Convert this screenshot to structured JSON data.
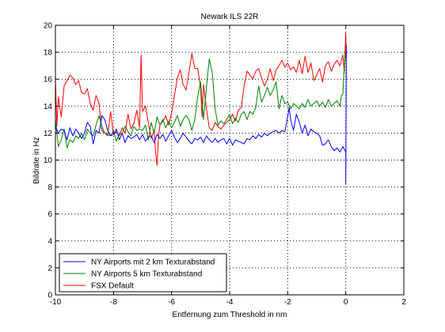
{
  "chart_data": {
    "type": "line",
    "title": "Newark ILS 22R",
    "xlabel": "Entfernung zum Threshold in nm",
    "ylabel": "Bildrate in Hz",
    "xlim": [
      -10,
      2
    ],
    "ylim": [
      0,
      20
    ],
    "xticks": [
      -10,
      -8,
      -6,
      -4,
      -2,
      0,
      2
    ],
    "yticks": [
      0,
      2,
      4,
      6,
      8,
      10,
      12,
      14,
      16,
      18,
      20
    ],
    "grid": "dotted",
    "legend_position": "bottom-left",
    "series": [
      {
        "name": "NY Airports mit 2 km Texturabstand",
        "color": "#0000ff",
        "x": [
          -10,
          -9.9,
          -9.8,
          -9.7,
          -9.6,
          -9.5,
          -9.4,
          -9.3,
          -9.2,
          -9.1,
          -9.0,
          -8.9,
          -8.8,
          -8.7,
          -8.6,
          -8.5,
          -8.4,
          -8.3,
          -8.2,
          -8.1,
          -8.0,
          -7.9,
          -7.8,
          -7.7,
          -7.6,
          -7.5,
          -7.4,
          -7.3,
          -7.2,
          -7.1,
          -7.0,
          -6.9,
          -6.8,
          -6.7,
          -6.6,
          -6.5,
          -6.4,
          -6.3,
          -6.2,
          -6.1,
          -6.0,
          -5.9,
          -5.8,
          -5.7,
          -5.6,
          -5.5,
          -5.4,
          -5.3,
          -5.2,
          -5.1,
          -5.0,
          -4.9,
          -4.8,
          -4.7,
          -4.6,
          -4.5,
          -4.4,
          -4.3,
          -4.2,
          -4.1,
          -4.0,
          -3.9,
          -3.8,
          -3.7,
          -3.6,
          -3.5,
          -3.4,
          -3.3,
          -3.2,
          -3.1,
          -3.0,
          -2.9,
          -2.8,
          -2.7,
          -2.6,
          -2.5,
          -2.4,
          -2.3,
          -2.2,
          -2.1,
          -2.0,
          -1.95,
          -1.9,
          -1.8,
          -1.7,
          -1.6,
          -1.5,
          -1.4,
          -1.3,
          -1.2,
          -1.1,
          -1.0,
          -0.9,
          -0.8,
          -0.7,
          -0.6,
          -0.5,
          -0.4,
          -0.3,
          -0.2,
          -0.1,
          -0.05,
          0.0,
          0.0,
          0.02
        ],
        "y": [
          12.5,
          12.0,
          12.3,
          12.2,
          11.5,
          12.4,
          11.8,
          12.3,
          12.0,
          11.6,
          12.0,
          12.8,
          12.5,
          11.2,
          12.2,
          12.0,
          13.3,
          13.0,
          12.2,
          11.8,
          11.9,
          12.3,
          11.5,
          12.0,
          11.3,
          11.8,
          11.6,
          11.7,
          11.9,
          11.5,
          11.9,
          11.4,
          11.7,
          11.8,
          11.3,
          11.9,
          11.6,
          11.9,
          11.4,
          11.8,
          12.2,
          11.7,
          11.3,
          11.6,
          12.0,
          11.7,
          11.4,
          11.2,
          11.6,
          11.5,
          11.7,
          11.3,
          11.8,
          11.5,
          11.3,
          11.6,
          11.3,
          11.5,
          11.6,
          11.2,
          11.6,
          11.1,
          11.5,
          11.4,
          11.3,
          11.2,
          11.6,
          11.5,
          11.8,
          11.6,
          11.9,
          11.7,
          12.0,
          11.8,
          12.0,
          12.1,
          12.2,
          12.0,
          12.2,
          12.1,
          13.2,
          13.9,
          13.0,
          12.2,
          13.4,
          12.8,
          12.0,
          12.6,
          11.8,
          12.3,
          12.1,
          12.0,
          11.8,
          11.1,
          11.2,
          11.5,
          11.0,
          10.7,
          10.9,
          10.6,
          11.0,
          10.8,
          10.6,
          8.2,
          18.5
        ]
      },
      {
        "name": "NY Airports 5 km Texturabstand",
        "color": "#008000",
        "x": [
          -10,
          -9.9,
          -9.8,
          -9.7,
          -9.6,
          -9.5,
          -9.4,
          -9.3,
          -9.2,
          -9.1,
          -9.0,
          -8.9,
          -8.8,
          -8.7,
          -8.6,
          -8.5,
          -8.4,
          -8.3,
          -8.2,
          -8.1,
          -8.0,
          -7.9,
          -7.8,
          -7.7,
          -7.6,
          -7.5,
          -7.4,
          -7.3,
          -7.2,
          -7.1,
          -7.0,
          -6.9,
          -6.8,
          -6.7,
          -6.6,
          -6.5,
          -6.4,
          -6.3,
          -6.2,
          -6.1,
          -6.0,
          -5.9,
          -5.8,
          -5.7,
          -5.6,
          -5.5,
          -5.4,
          -5.3,
          -5.2,
          -5.1,
          -5.0,
          -4.9,
          -4.8,
          -4.7,
          -4.6,
          -4.5,
          -4.4,
          -4.3,
          -4.2,
          -4.1,
          -4.0,
          -3.9,
          -3.8,
          -3.7,
          -3.6,
          -3.5,
          -3.4,
          -3.3,
          -3.2,
          -3.1,
          -3.0,
          -2.9,
          -2.8,
          -2.7,
          -2.6,
          -2.5,
          -2.4,
          -2.3,
          -2.2,
          -2.1,
          -2.0,
          -1.9,
          -1.8,
          -1.7,
          -1.6,
          -1.5,
          -1.4,
          -1.3,
          -1.2,
          -1.1,
          -1.0,
          -0.9,
          -0.8,
          -0.7,
          -0.6,
          -0.5,
          -0.4,
          -0.3,
          -0.2,
          -0.15,
          -0.1,
          -0.05,
          0.0
        ],
        "y": [
          13.0,
          11.0,
          11.5,
          12.3,
          10.9,
          11.5,
          11.3,
          11.8,
          11.6,
          12.0,
          11.5,
          12.3,
          12.0,
          11.8,
          12.6,
          13.3,
          12.5,
          12.0,
          11.9,
          11.8,
          12.2,
          11.4,
          11.9,
          12.0,
          12.5,
          12.1,
          11.8,
          12.5,
          12.2,
          12.3,
          12.2,
          12.6,
          11.5,
          12.8,
          12.0,
          13.2,
          12.6,
          13.0,
          12.4,
          12.9,
          12.4,
          12.8,
          13.3,
          12.5,
          13.0,
          13.3,
          13.0,
          12.2,
          13.0,
          14.7,
          15.8,
          13.0,
          15.4,
          17.5,
          16.5,
          13.8,
          12.6,
          12.9,
          12.7,
          13.0,
          13.4,
          12.7,
          13.1,
          12.8,
          13.4,
          13.6,
          13.0,
          13.6,
          13.4,
          13.9,
          15.5,
          14.3,
          14.8,
          15.4,
          14.8,
          15.2,
          15.8,
          13.8,
          14.8,
          14.2,
          14.3,
          13.8,
          14.2,
          14.0,
          13.8,
          14.2,
          13.9,
          14.5,
          14.0,
          14.2,
          14.4,
          14.0,
          14.3,
          13.9,
          14.5,
          14.0,
          14.2,
          14.4,
          14.0,
          14.8,
          14.9,
          17.0,
          18.0
        ]
      },
      {
        "name": "FSX Default",
        "color": "#ff0000",
        "x": [
          -10,
          -9.95,
          -9.9,
          -9.8,
          -9.7,
          -9.6,
          -9.5,
          -9.4,
          -9.3,
          -9.2,
          -9.1,
          -9.0,
          -8.9,
          -8.8,
          -8.7,
          -8.6,
          -8.5,
          -8.4,
          -8.3,
          -8.2,
          -8.1,
          -8.0,
          -7.9,
          -7.8,
          -7.7,
          -7.6,
          -7.5,
          -7.4,
          -7.3,
          -7.2,
          -7.1,
          -7.05,
          -7.0,
          -6.9,
          -6.8,
          -6.7,
          -6.6,
          -6.55,
          -6.5,
          -6.45,
          -6.4,
          -6.3,
          -6.2,
          -6.1,
          -6.0,
          -5.9,
          -5.8,
          -5.7,
          -5.6,
          -5.5,
          -5.4,
          -5.3,
          -5.2,
          -5.1,
          -5.0,
          -4.95,
          -4.9,
          -4.8,
          -4.7,
          -4.6,
          -4.5,
          -4.4,
          -4.3,
          -4.2,
          -4.1,
          -4.0,
          -3.9,
          -3.8,
          -3.7,
          -3.6,
          -3.5,
          -3.4,
          -3.3,
          -3.2,
          -3.1,
          -3.0,
          -2.9,
          -2.8,
          -2.7,
          -2.6,
          -2.5,
          -2.4,
          -2.3,
          -2.2,
          -2.1,
          -2.0,
          -1.9,
          -1.8,
          -1.7,
          -1.6,
          -1.5,
          -1.4,
          -1.3,
          -1.2,
          -1.1,
          -1.0,
          -0.9,
          -0.8,
          -0.7,
          -0.6,
          -0.5,
          -0.4,
          -0.3,
          -0.2,
          -0.1,
          -0.05,
          0.0,
          0.02
        ],
        "y": [
          16.0,
          12.5,
          14.7,
          13.2,
          15.5,
          15.9,
          16.3,
          16.1,
          15.6,
          15.9,
          15.0,
          14.9,
          15.3,
          14.2,
          13.7,
          14.8,
          14.2,
          12.2,
          12.0,
          11.8,
          13.6,
          11.9,
          12.1,
          11.8,
          12.4,
          12.0,
          13.4,
          12.3,
          12.7,
          13.7,
          12.4,
          17.8,
          13.6,
          14.0,
          12.8,
          11.6,
          12.2,
          10.6,
          9.6,
          11.8,
          12.6,
          12.9,
          13.3,
          12.6,
          13.5,
          14.8,
          16.1,
          16.7,
          15.6,
          15.2,
          16.5,
          17.9,
          16.8,
          16.8,
          15.4,
          13.2,
          15.6,
          13.8,
          12.4,
          12.2,
          12.8,
          12.5,
          12.3,
          12.6,
          12.8,
          13.0,
          13.4,
          12.9,
          13.7,
          13.9,
          15.5,
          16.6,
          16.3,
          16.0,
          16.6,
          16.8,
          16.1,
          15.5,
          16.0,
          16.8,
          15.9,
          16.7,
          17.0,
          17.4,
          16.9,
          17.2,
          16.7,
          16.9,
          16.5,
          17.4,
          16.4,
          17.7,
          16.5,
          17.2,
          15.9,
          16.3,
          16.8,
          15.8,
          17.0,
          17.3,
          16.6,
          17.1,
          17.4,
          17.0,
          17.8,
          16.5,
          19.5,
          17.6
        ]
      }
    ]
  }
}
